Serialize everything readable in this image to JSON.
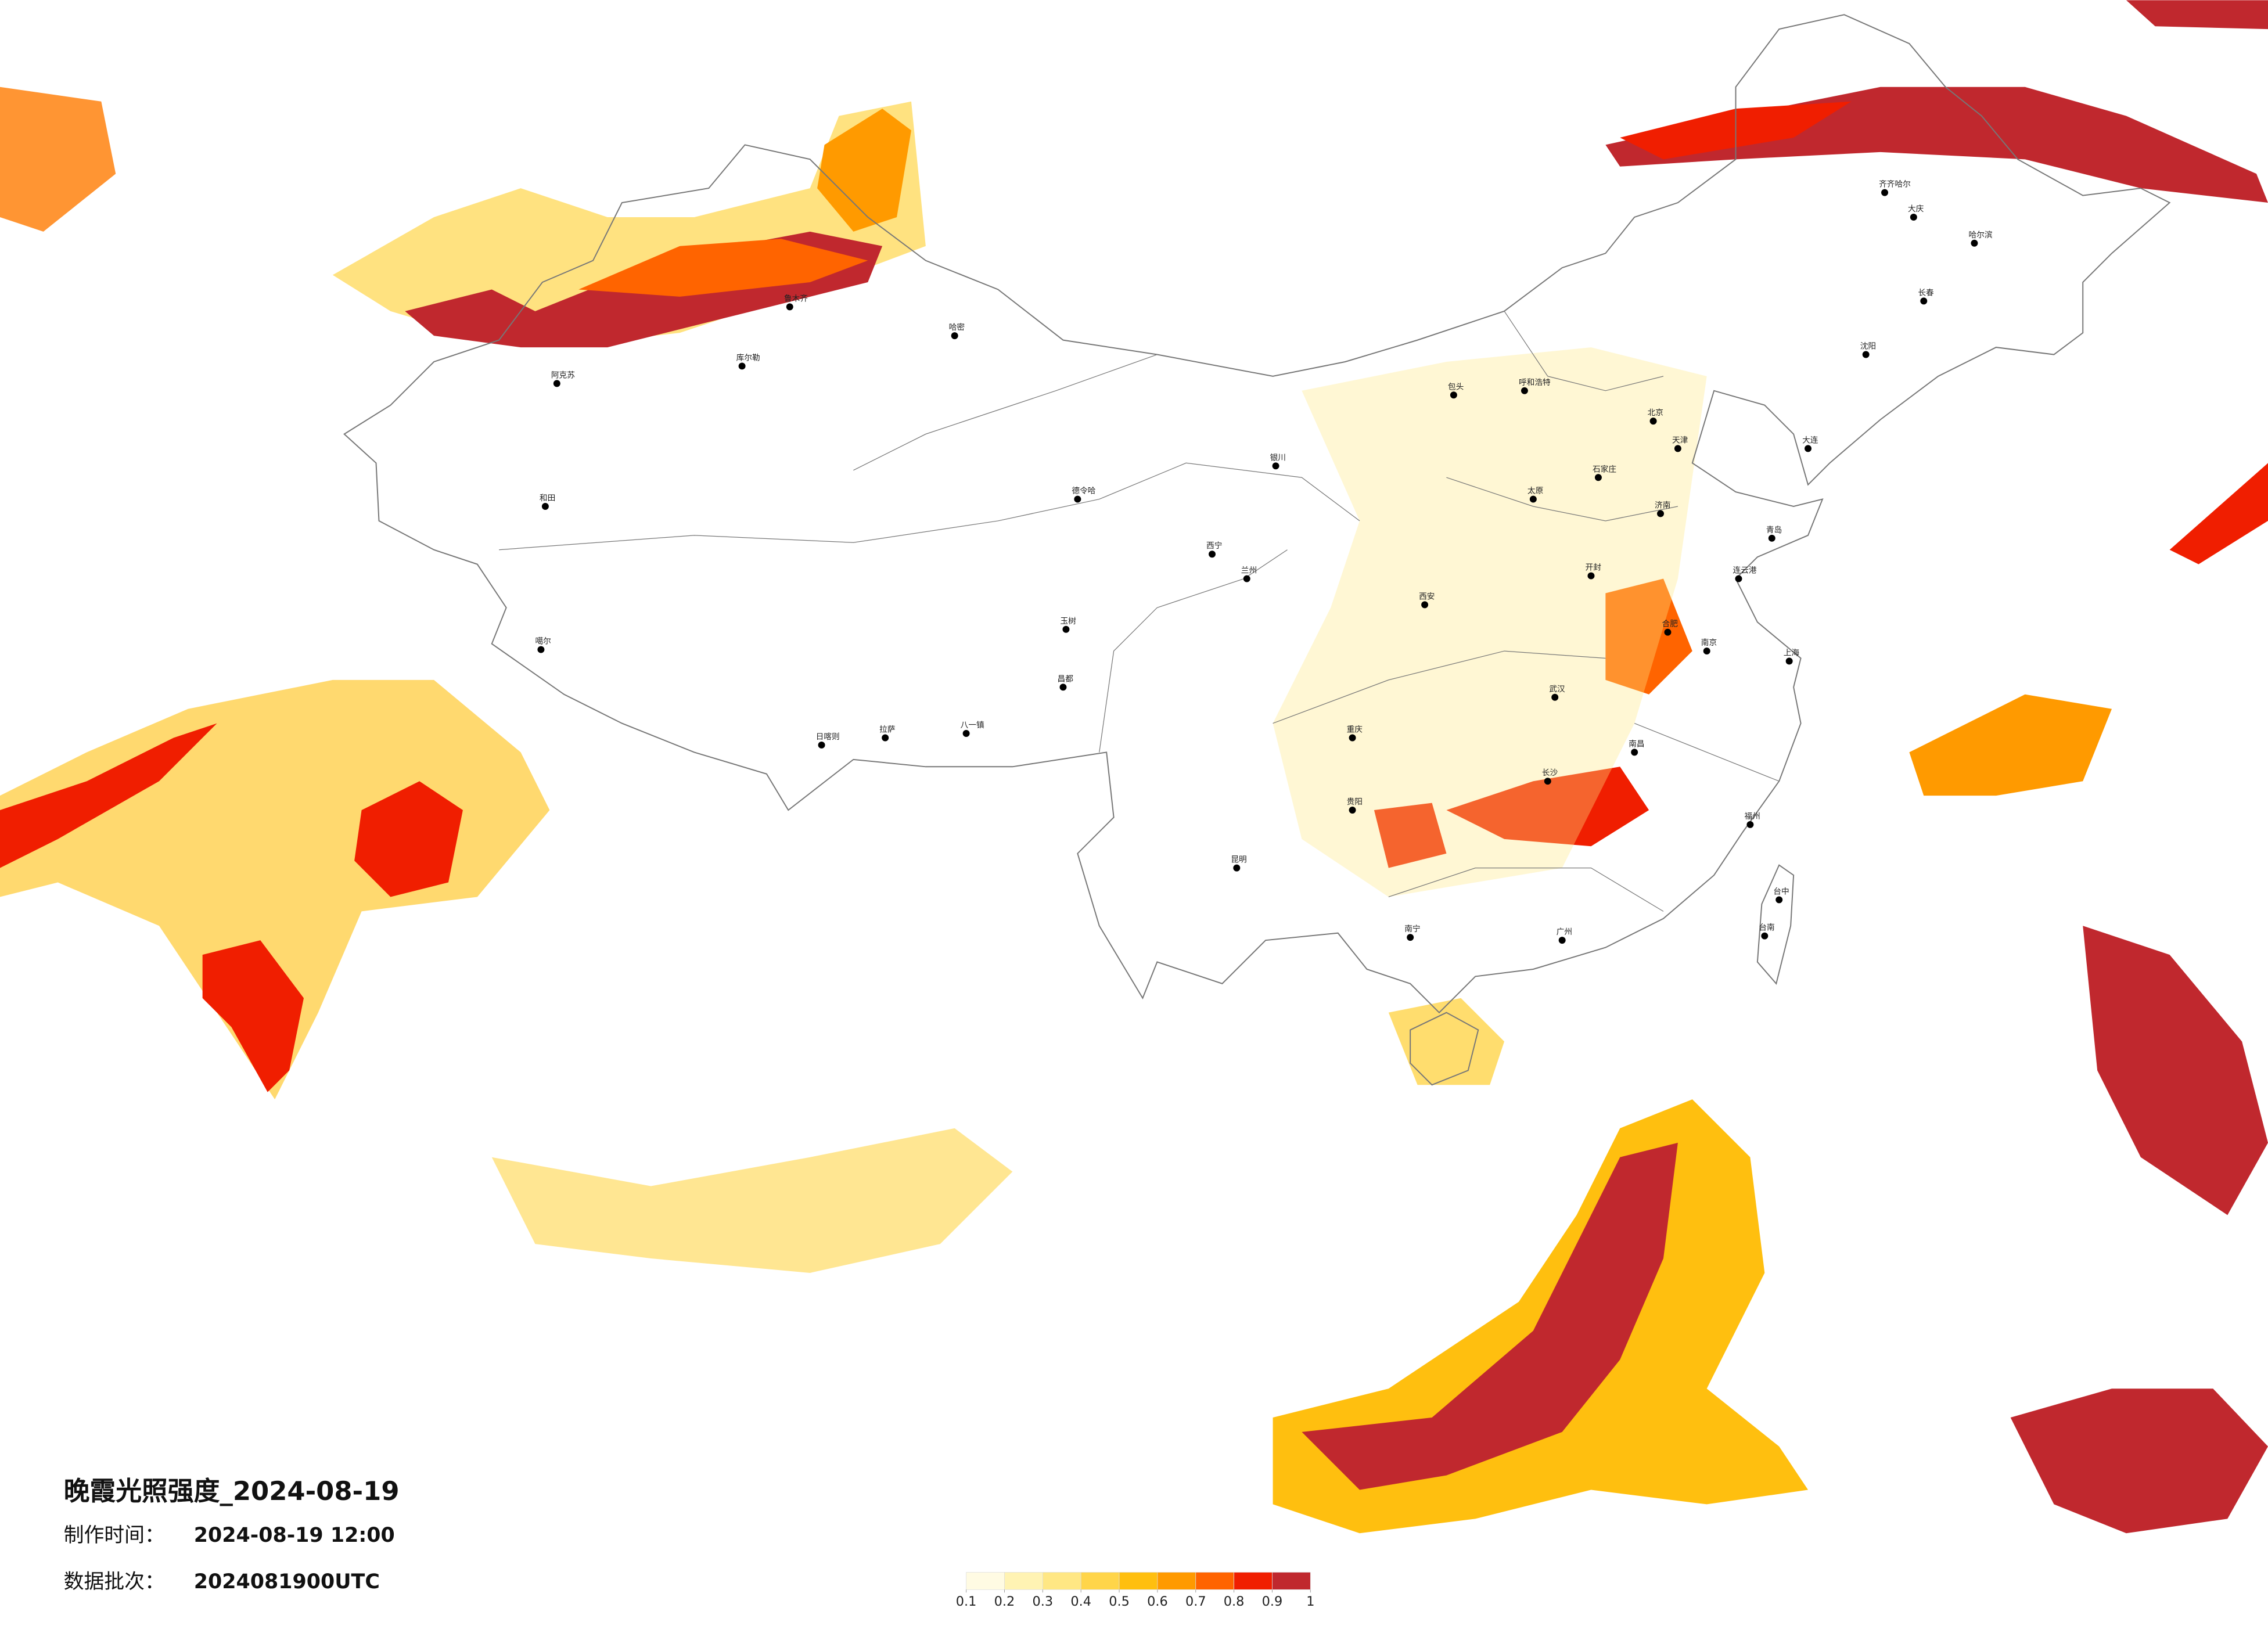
{
  "header": {
    "title": "晚霞光照强度_2024-08-19",
    "made_label": "制作时间：",
    "made_time": "2024-08-19 12:00",
    "batch_label": "数据批次：",
    "batch_value": "2024081900UTC"
  },
  "legend": {
    "colors": [
      "#fffbe3",
      "#fff3b3",
      "#ffe784",
      "#ffd54a",
      "#ffbf0f",
      "#ff9a00",
      "#ff6400",
      "#f01e00",
      "#c0282e"
    ],
    "ticks": [
      0.1,
      0.2,
      0.3,
      0.4,
      0.5,
      0.6,
      0.7,
      0.8,
      0.9,
      1
    ]
  },
  "cities": [
    "阿克苏",
    "和田",
    "库尔勒",
    "鲁木齐",
    "哈密",
    "噶尔",
    "日喀则",
    "拉萨",
    "八一镇",
    "昌都",
    "玉树",
    "德令哈",
    "西宁",
    "兰州",
    "银川",
    "包头",
    "呼和浩特",
    "北京",
    "天津",
    "石家庄",
    "太原",
    "济南",
    "青岛",
    "连云港",
    "开封",
    "西安",
    "合肥",
    "南京",
    "上海",
    "武汉",
    "长沙",
    "南昌",
    "福州",
    "广州",
    "南宁",
    "昆明",
    "贵阳",
    "重庆",
    "哈尔滨",
    "长春",
    "沈阳",
    "大连",
    "齐齐哈尔",
    "大庆",
    "台中",
    "台南"
  ]
}
